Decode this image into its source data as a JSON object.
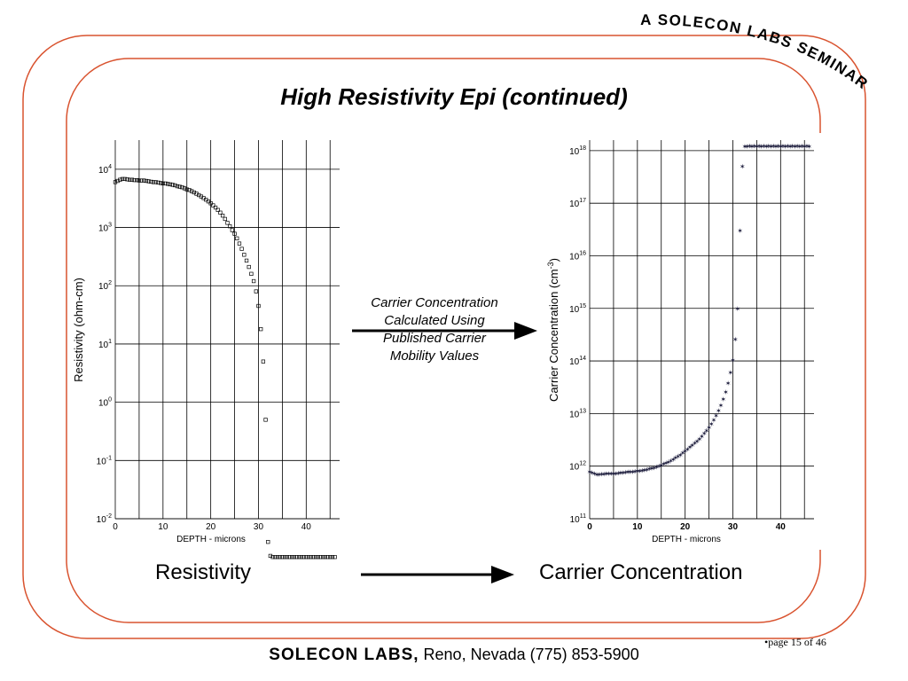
{
  "slide": {
    "title": "High Resistivity Epi (continued)",
    "seminar_banner": "A SOLECON LABS SEMINAR",
    "middle_text": [
      "Carrier Concentration",
      "Calculated Using",
      "Published Carrier",
      "Mobility Values"
    ],
    "caption_left": "Resistivity",
    "caption_right": "Carrier Concentration",
    "footer_brand": "SOLECON LABS,",
    "footer_rest": " Reno, Nevada (775) 853-5900",
    "page_number": "•page 15 of 46",
    "colors": {
      "frame": "#d9532f",
      "text": "#000000",
      "cc_points": "#1a1a3a"
    }
  },
  "chart_data": [
    {
      "type": "scatter",
      "name": "resistivity",
      "ylabel": "Resistivity  (ohm-cm)",
      "xlabel": "DEPTH - microns",
      "x_ticks": [
        "0",
        "10",
        "20",
        "30",
        "40"
      ],
      "y_scale": "log",
      "y_tick_exponents": [
        "4",
        "3",
        "2",
        "1",
        "0",
        "-1",
        "-2"
      ],
      "xlim": [
        0,
        47
      ],
      "ylim_log10": [
        -2,
        4.5
      ],
      "grid": true,
      "marker": "square",
      "points": [
        [
          0,
          6000
        ],
        [
          0.5,
          6300
        ],
        [
          1,
          6600
        ],
        [
          1.5,
          6800
        ],
        [
          2,
          6800
        ],
        [
          2.5,
          6700
        ],
        [
          3,
          6600
        ],
        [
          3.5,
          6600
        ],
        [
          4,
          6500
        ],
        [
          4.5,
          6500
        ],
        [
          5,
          6400
        ],
        [
          5.5,
          6400
        ],
        [
          6,
          6400
        ],
        [
          6.5,
          6300
        ],
        [
          7,
          6200
        ],
        [
          7.5,
          6100
        ],
        [
          8,
          6000
        ],
        [
          8.5,
          6000
        ],
        [
          9,
          5900
        ],
        [
          9.5,
          5800
        ],
        [
          10,
          5700
        ],
        [
          10.5,
          5700
        ],
        [
          11,
          5600
        ],
        [
          11.5,
          5500
        ],
        [
          12,
          5400
        ],
        [
          12.5,
          5300
        ],
        [
          13,
          5100
        ],
        [
          13.5,
          5000
        ],
        [
          14,
          4900
        ],
        [
          14.5,
          4700
        ],
        [
          15,
          4500
        ],
        [
          15.5,
          4400
        ],
        [
          16,
          4200
        ],
        [
          16.5,
          4000
        ],
        [
          17,
          3800
        ],
        [
          17.5,
          3600
        ],
        [
          18,
          3400
        ],
        [
          18.5,
          3200
        ],
        [
          19,
          3000
        ],
        [
          19.5,
          2800
        ],
        [
          20,
          2600
        ],
        [
          20.5,
          2400
        ],
        [
          21,
          2200
        ],
        [
          21.5,
          2000
        ],
        [
          22,
          1800
        ],
        [
          22.5,
          1600
        ],
        [
          23,
          1400
        ],
        [
          23.5,
          1200
        ],
        [
          24,
          1050
        ],
        [
          24.5,
          900
        ],
        [
          25,
          780
        ],
        [
          25.5,
          650
        ],
        [
          26,
          530
        ],
        [
          26.5,
          430
        ],
        [
          27,
          340
        ],
        [
          27.5,
          270
        ],
        [
          28,
          210
        ],
        [
          28.5,
          160
        ],
        [
          29,
          120
        ],
        [
          29.5,
          80
        ],
        [
          30,
          45
        ],
        [
          30.5,
          18
        ],
        [
          31,
          5
        ],
        [
          31.5,
          0.5
        ],
        [
          32,
          0.004
        ],
        [
          32.5,
          0.0023
        ],
        [
          33,
          0.0022
        ],
        [
          33.5,
          0.0022
        ],
        [
          34,
          0.0022
        ],
        [
          34.5,
          0.0022
        ],
        [
          35,
          0.0022
        ],
        [
          35.5,
          0.0022
        ],
        [
          36,
          0.0022
        ],
        [
          36.5,
          0.0022
        ],
        [
          37,
          0.0022
        ],
        [
          37.5,
          0.0022
        ],
        [
          38,
          0.0022
        ],
        [
          38.5,
          0.0022
        ],
        [
          39,
          0.0022
        ],
        [
          39.5,
          0.0022
        ],
        [
          40,
          0.0022
        ],
        [
          40.5,
          0.0022
        ],
        [
          41,
          0.0022
        ],
        [
          41.5,
          0.0022
        ],
        [
          42,
          0.0022
        ],
        [
          42.5,
          0.0022
        ],
        [
          43,
          0.0022
        ],
        [
          43.5,
          0.0022
        ],
        [
          44,
          0.0022
        ],
        [
          44.5,
          0.0022
        ],
        [
          45,
          0.0022
        ],
        [
          45.5,
          0.0022
        ],
        [
          46,
          0.0022
        ]
      ]
    },
    {
      "type": "scatter",
      "name": "carrier-concentration",
      "ylabel": "Carrier Concentration  (cm",
      "ylabel_sup": "-3",
      "ylabel_close": ")",
      "xlabel": "DEPTH - microns",
      "x_ticks": [
        "0",
        "10",
        "20",
        "30",
        "40"
      ],
      "y_scale": "log",
      "y_tick_exponents": [
        "18",
        "17",
        "16",
        "15",
        "14",
        "13",
        "12",
        "11"
      ],
      "xlim": [
        0,
        47
      ],
      "ylim_log10": [
        11,
        18.2
      ],
      "grid": true,
      "marker": "star",
      "points": [
        [
          0,
          780000000000.0
        ],
        [
          0.5,
          750000000000.0
        ],
        [
          1,
          720000000000.0
        ],
        [
          1.5,
          700000000000.0
        ],
        [
          2,
          700000000000.0
        ],
        [
          2.5,
          710000000000.0
        ],
        [
          3,
          710000000000.0
        ],
        [
          3.5,
          720000000000.0
        ],
        [
          4,
          720000000000.0
        ],
        [
          4.5,
          730000000000.0
        ],
        [
          5,
          730000000000.0
        ],
        [
          5.5,
          730000000000.0
        ],
        [
          6,
          740000000000.0
        ],
        [
          6.5,
          750000000000.0
        ],
        [
          7,
          760000000000.0
        ],
        [
          7.5,
          770000000000.0
        ],
        [
          8,
          780000000000.0
        ],
        [
          8.5,
          780000000000.0
        ],
        [
          9,
          790000000000.0
        ],
        [
          9.5,
          800000000000.0
        ],
        [
          10,
          810000000000.0
        ],
        [
          10.5,
          820000000000.0
        ],
        [
          11,
          830000000000.0
        ],
        [
          11.5,
          850000000000.0
        ],
        [
          12,
          870000000000.0
        ],
        [
          12.5,
          890000000000.0
        ],
        [
          13,
          910000000000.0
        ],
        [
          13.5,
          940000000000.0
        ],
        [
          14,
          970000000000.0
        ],
        [
          14.5,
          1000000000000.0
        ],
        [
          15,
          1050000000000.0
        ],
        [
          15.5,
          1100000000000.0
        ],
        [
          16,
          1150000000000.0
        ],
        [
          16.5,
          1200000000000.0
        ],
        [
          17,
          1270000000000.0
        ],
        [
          17.5,
          1350000000000.0
        ],
        [
          18,
          1450000000000.0
        ],
        [
          18.5,
          1550000000000.0
        ],
        [
          19,
          1650000000000.0
        ],
        [
          19.5,
          1800000000000.0
        ],
        [
          20,
          1950000000000.0
        ],
        [
          20.5,
          2100000000000.0
        ],
        [
          21,
          2300000000000.0
        ],
        [
          21.5,
          2500000000000.0
        ],
        [
          22,
          2750000000000.0
        ],
        [
          22.5,
          3000000000000.0
        ],
        [
          23,
          3300000000000.0
        ],
        [
          23.5,
          3700000000000.0
        ],
        [
          24,
          4200000000000.0
        ],
        [
          24.5,
          4800000000000.0
        ],
        [
          25,
          5500000000000.0
        ],
        [
          25.5,
          6400000000000.0
        ],
        [
          26,
          7600000000000.0
        ],
        [
          26.5,
          9200000000000.0
        ],
        [
          27,
          11500000000000.0
        ],
        [
          27.5,
          14500000000000.0
        ],
        [
          28,
          19000000000000.0
        ],
        [
          28.5,
          26000000000000.0
        ],
        [
          29,
          38000000000000.0
        ],
        [
          29.5,
          60000000000000.0
        ],
        [
          30,
          105000000000000.0
        ],
        [
          30.5,
          260000000000000.0
        ],
        [
          31,
          1000000000000000.0
        ],
        [
          31.5,
          3e+16
        ],
        [
          32,
          5e+17
        ],
        [
          32.5,
          1.2e+18
        ],
        [
          33,
          1.2e+18
        ],
        [
          33.5,
          1.22e+18
        ],
        [
          34,
          1.2e+18
        ],
        [
          34.5,
          1.22e+18
        ],
        [
          35,
          1.2e+18
        ],
        [
          35.5,
          1.22e+18
        ],
        [
          36,
          1.2e+18
        ],
        [
          36.5,
          1.22e+18
        ],
        [
          37,
          1.2e+18
        ],
        [
          37.5,
          1.22e+18
        ],
        [
          38,
          1.2e+18
        ],
        [
          38.5,
          1.22e+18
        ],
        [
          39,
          1.2e+18
        ],
        [
          39.5,
          1.22e+18
        ],
        [
          40,
          1.2e+18
        ],
        [
          40.5,
          1.22e+18
        ],
        [
          41,
          1.2e+18
        ],
        [
          41.5,
          1.22e+18
        ],
        [
          42,
          1.2e+18
        ],
        [
          42.5,
          1.22e+18
        ],
        [
          43,
          1.2e+18
        ],
        [
          43.5,
          1.22e+18
        ],
        [
          44,
          1.2e+18
        ],
        [
          44.5,
          1.22e+18
        ],
        [
          45,
          1.2e+18
        ],
        [
          45.5,
          1.22e+18
        ],
        [
          46,
          1.2e+18
        ]
      ]
    }
  ]
}
